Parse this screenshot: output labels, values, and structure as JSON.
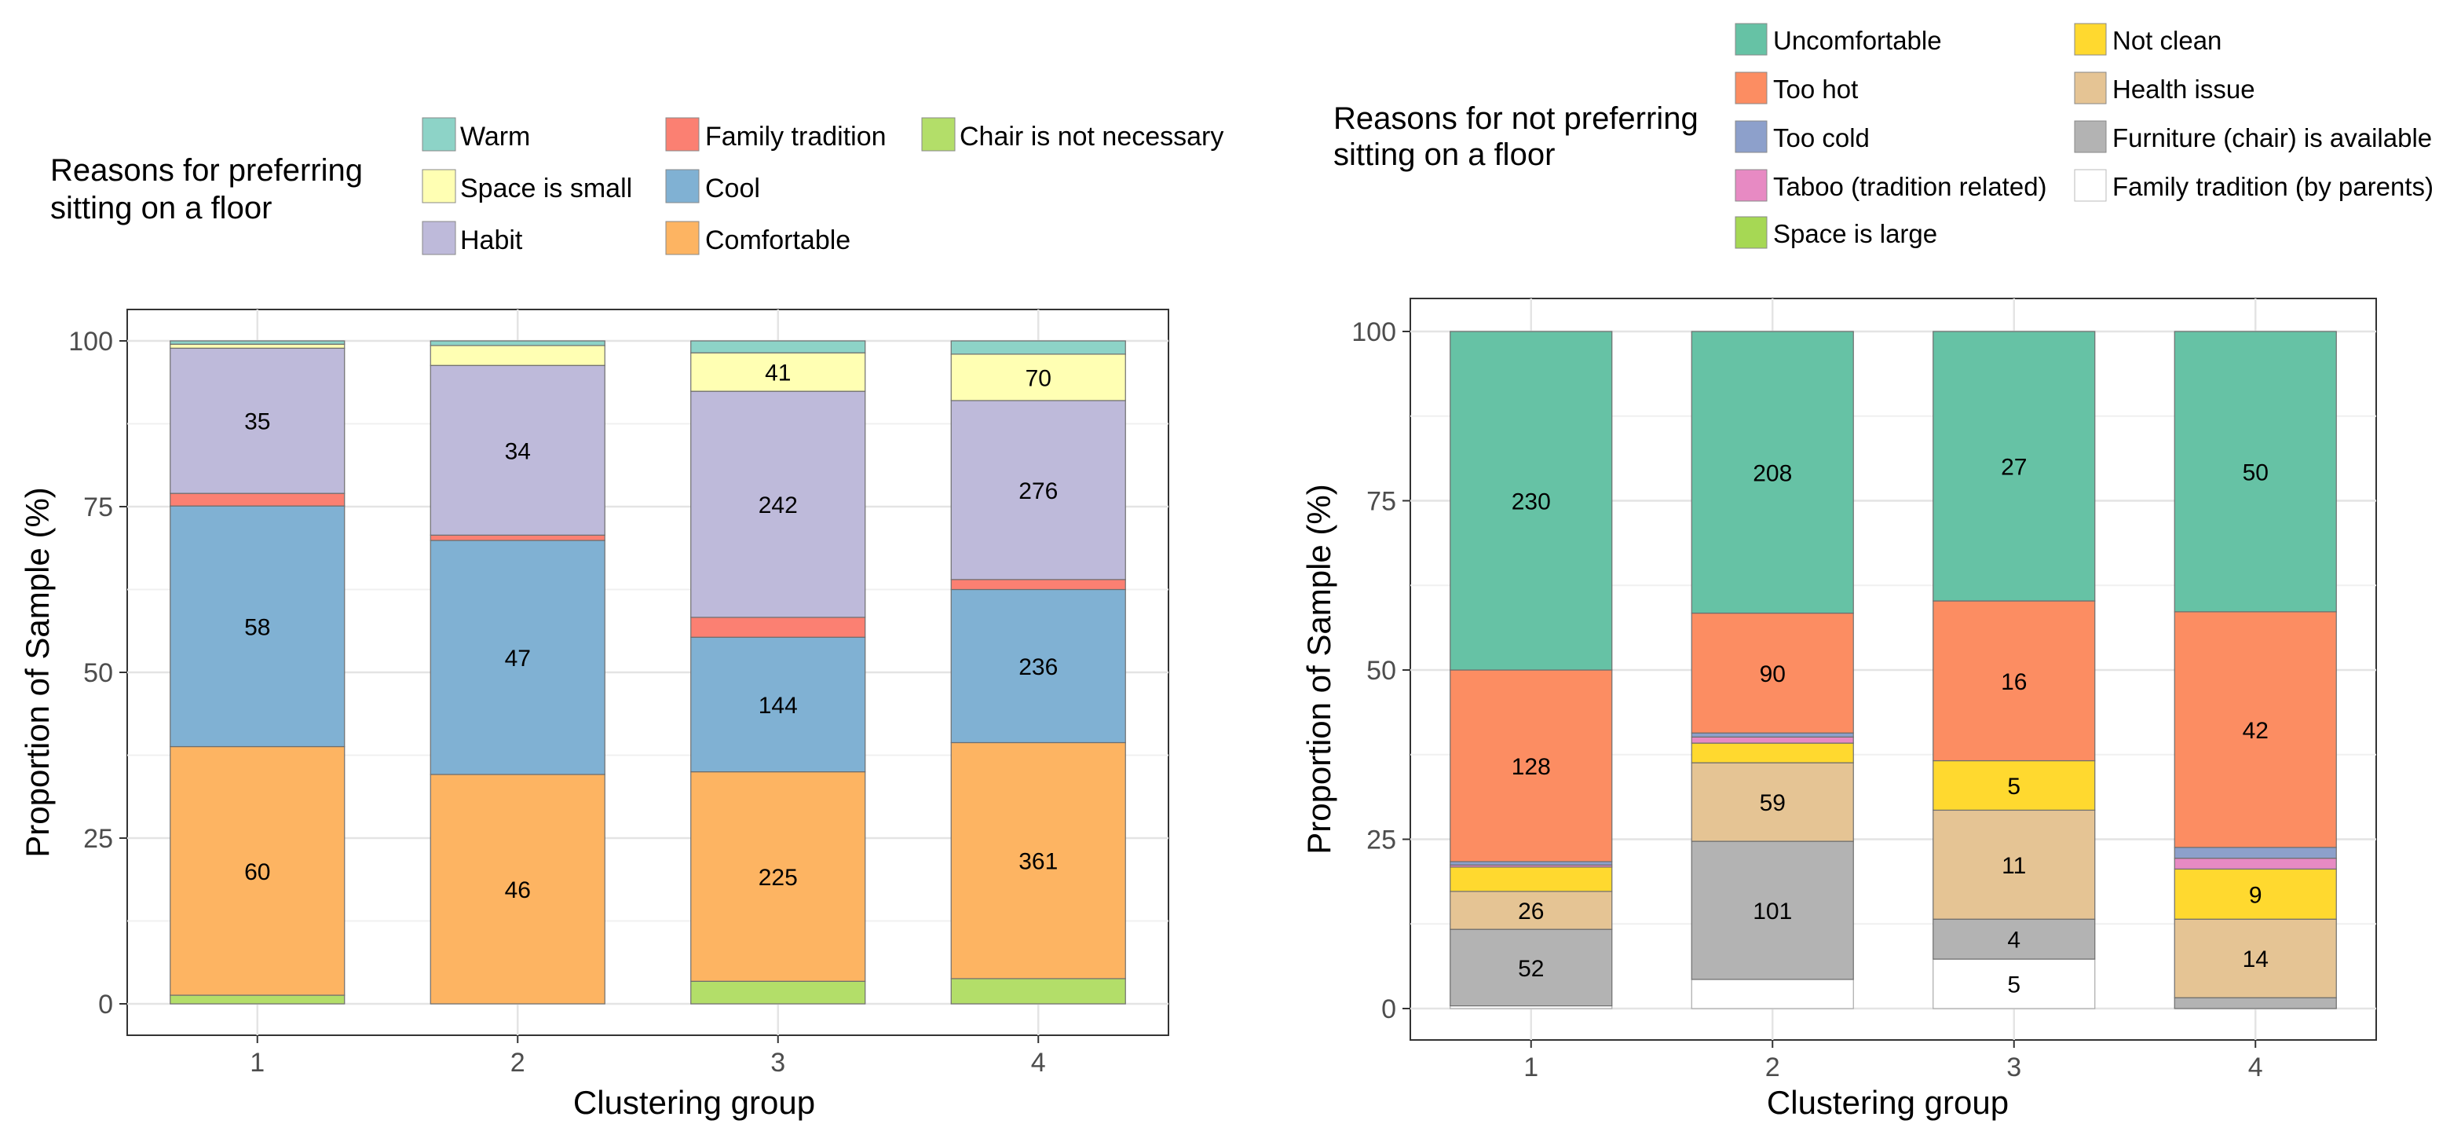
{
  "chart_data": [
    {
      "type": "bar",
      "stacked": true,
      "title": "Reasons for preferring sitting on a floor",
      "title_lines": [
        "Reasons for preferring",
        "sitting on a floor"
      ],
      "xlabel": "Clustering group",
      "ylabel": "Proportion of Sample (%)",
      "ylim": [
        0,
        100
      ],
      "yticks": [
        "0",
        "25",
        "50",
        "75",
        "100"
      ],
      "grid": true,
      "legend_position": "top",
      "categories": [
        "1",
        "2",
        "3",
        "4"
      ],
      "legend": [
        {
          "name": "Warm",
          "color": "#8dd3c7"
        },
        {
          "name": "Family tradition",
          "color": "#fb8072"
        },
        {
          "name": "Chair is not necessary",
          "color": "#b3de69"
        },
        {
          "name": "Space is small",
          "color": "#ffffb3"
        },
        {
          "name": "Cool",
          "color": "#80b1d3"
        },
        {
          "name": "Habit",
          "color": "#bebada"
        },
        {
          "name": "Comfortable",
          "color": "#fdb462"
        }
      ],
      "series": [
        {
          "name": "Chair is not necessary",
          "color": "#b3de69",
          "values": [
            1.3,
            0,
            3.4,
            3.8
          ],
          "labels": [
            "",
            "",
            "",
            ""
          ]
        },
        {
          "name": "Comfortable",
          "color": "#fdb462",
          "values": [
            37.5,
            34.6,
            31.6,
            35.6
          ],
          "labels": [
            "60",
            "46",
            "225",
            "361"
          ]
        },
        {
          "name": "Cool",
          "color": "#80b1d3",
          "values": [
            36.3,
            35.3,
            20.3,
            23.1
          ],
          "labels": [
            "58",
            "47",
            "144",
            "236"
          ]
        },
        {
          "name": "Family tradition",
          "color": "#fb8072",
          "values": [
            1.9,
            0.8,
            3.0,
            1.5
          ],
          "labels": [
            "",
            "",
            "",
            ""
          ]
        },
        {
          "name": "Habit",
          "color": "#bebada",
          "values": [
            21.9,
            25.6,
            34.1,
            27.0
          ],
          "labels": [
            "35",
            "34",
            "242",
            "276"
          ]
        },
        {
          "name": "Space is small",
          "color": "#ffffb3",
          "values": [
            0.6,
            3.0,
            5.8,
            7.0
          ],
          "labels": [
            "",
            "",
            "41",
            "70"
          ]
        },
        {
          "name": "Warm",
          "color": "#8dd3c7",
          "values": [
            0.5,
            0.7,
            1.8,
            2.0
          ],
          "labels": [
            "",
            "",
            "",
            ""
          ]
        }
      ]
    },
    {
      "type": "bar",
      "stacked": true,
      "title": "Reasons for not preferring sitting on a floor",
      "title_lines": [
        "Reasons for not preferring",
        "sitting on a floor"
      ],
      "xlabel": "Clustering group",
      "ylabel": "Proportion of Sample (%)",
      "ylim": [
        0,
        100
      ],
      "yticks": [
        "0",
        "25",
        "50",
        "75",
        "100"
      ],
      "grid": true,
      "legend_position": "top",
      "categories": [
        "1",
        "2",
        "3",
        "4"
      ],
      "legend": [
        {
          "name": "Uncomfortable",
          "color": "#66c2a5"
        },
        {
          "name": "Not clean",
          "color": "#ffd92f"
        },
        {
          "name": "Too hot",
          "color": "#fc8d62"
        },
        {
          "name": "Health issue",
          "color": "#e5c494"
        },
        {
          "name": "Too cold",
          "color": "#8da0cb"
        },
        {
          "name": "Furniture (chair) is available",
          "color": "#b3b3b3"
        },
        {
          "name": "Taboo (tradition related)",
          "color": "#e78ac3"
        },
        {
          "name": "Family tradition (by parents)",
          "color": "#ffffff"
        },
        {
          "name": "Space is large",
          "color": "#a6d854"
        }
      ],
      "series": [
        {
          "name": "Family tradition (by parents)",
          "color": "#ffffff",
          "values": [
            0.4,
            4.3,
            7.3,
            0
          ],
          "labels": [
            "",
            "",
            "5",
            ""
          ]
        },
        {
          "name": "Furniture (chair) is available",
          "color": "#b3b3b3",
          "values": [
            11.3,
            20.4,
            5.9,
            1.6
          ],
          "labels": [
            "52",
            "101",
            "4",
            ""
          ]
        },
        {
          "name": "Health issue",
          "color": "#e5c494",
          "values": [
            5.6,
            11.6,
            16.1,
            11.6
          ],
          "labels": [
            "26",
            "59",
            "11",
            "14"
          ]
        },
        {
          "name": "Not clean",
          "color": "#ffd92f",
          "values": [
            3.6,
            2.9,
            7.3,
            7.4
          ],
          "labels": [
            "",
            "",
            "5",
            "9"
          ]
        },
        {
          "name": "Taboo (tradition related)",
          "color": "#e78ac3",
          "values": [
            0.3,
            0.9,
            0,
            1.6
          ],
          "labels": [
            "",
            "",
            "",
            ""
          ]
        },
        {
          "name": "Too cold",
          "color": "#8da0cb",
          "values": [
            0.5,
            0.6,
            0,
            1.6
          ],
          "labels": [
            "",
            "",
            "",
            ""
          ]
        },
        {
          "name": "Space is large",
          "color": "#a6d854",
          "values": [
            0,
            0,
            0,
            0
          ],
          "labels": [
            "",
            "",
            "",
            ""
          ]
        },
        {
          "name": "Too hot",
          "color": "#fc8d62",
          "values": [
            28.3,
            17.7,
            23.6,
            34.8
          ],
          "labels": [
            "128",
            "90",
            "16",
            "42"
          ]
        },
        {
          "name": "Uncomfortable",
          "color": "#66c2a5",
          "values": [
            50.0,
            41.6,
            39.8,
            41.4
          ],
          "labels": [
            "230",
            "208",
            "27",
            "50"
          ]
        }
      ]
    }
  ]
}
